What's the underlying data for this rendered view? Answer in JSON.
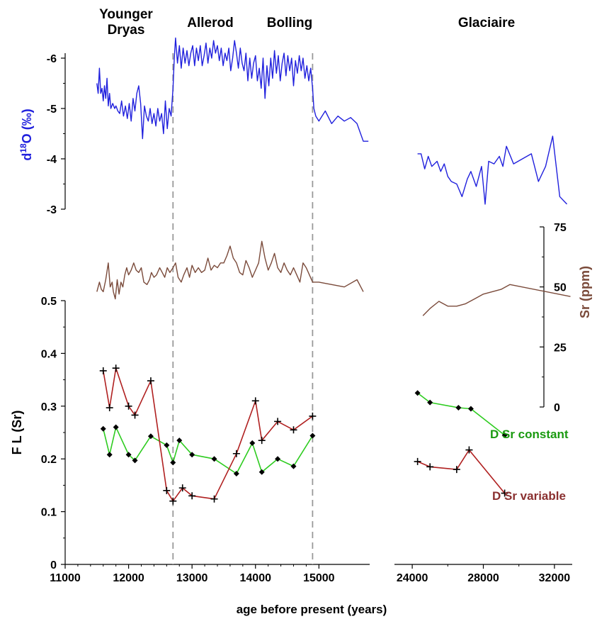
{
  "chart_data": {
    "type": "line",
    "period_labels": [
      "Younger\nDryas",
      "Allerod",
      "Bolling",
      "Glaciaire"
    ],
    "xlabel": "age before present (years)",
    "x_ticks_left": [
      "11000",
      "12000",
      "13000",
      "14000",
      "15000"
    ],
    "x_ticks_right": [
      "24000",
      "28000",
      "32000"
    ],
    "x_range_left": [
      11000,
      15800
    ],
    "x_range_right": [
      23000,
      33000
    ],
    "boundaries": [
      12700,
      14900
    ],
    "d18o": {
      "label_prefix": "d",
      "label_sup": "18",
      "label_suffix": "O (‰)",
      "color": "#2020dd",
      "ticks": [
        "-6",
        "-5",
        "-4",
        "-3"
      ],
      "ylim": [
        -3,
        -6.5
      ],
      "left": [
        [
          11500,
          -5.5
        ],
        [
          11520,
          -5.3
        ],
        [
          11540,
          -5.8
        ],
        [
          11560,
          -5.3
        ],
        [
          11580,
          -5.4
        ],
        [
          11600,
          -5.15
        ],
        [
          11620,
          -5.45
        ],
        [
          11640,
          -5.2
        ],
        [
          11660,
          -5.6
        ],
        [
          11680,
          -5.05
        ],
        [
          11700,
          -5.3
        ],
        [
          11720,
          -5.0
        ],
        [
          11750,
          -5.1
        ],
        [
          11780,
          -5.0
        ],
        [
          11800,
          -5.05
        ],
        [
          11830,
          -4.95
        ],
        [
          11860,
          -4.9
        ],
        [
          11890,
          -5.15
        ],
        [
          11920,
          -4.85
        ],
        [
          11950,
          -5.05
        ],
        [
          11980,
          -4.8
        ],
        [
          12010,
          -5.1
        ],
        [
          12040,
          -4.75
        ],
        [
          12070,
          -5.2
        ],
        [
          12100,
          -4.95
        ],
        [
          12130,
          -5.3
        ],
        [
          12160,
          -5.45
        ],
        [
          12190,
          -5.1
        ],
        [
          12220,
          -4.4
        ],
        [
          12250,
          -5.05
        ],
        [
          12280,
          -4.85
        ],
        [
          12310,
          -4.75
        ],
        [
          12340,
          -5.0
        ],
        [
          12370,
          -4.7
        ],
        [
          12400,
          -4.9
        ],
        [
          12430,
          -4.65
        ],
        [
          12460,
          -5.0
        ],
        [
          12490,
          -4.75
        ],
        [
          12520,
          -4.9
        ],
        [
          12550,
          -4.5
        ],
        [
          12580,
          -5.15
        ],
        [
          12610,
          -4.6
        ],
        [
          12640,
          -5.0
        ],
        [
          12670,
          -4.85
        ],
        [
          12700,
          -5.4
        ],
        [
          12720,
          -6.0
        ],
        [
          12740,
          -6.4
        ],
        [
          12770,
          -5.9
        ],
        [
          12800,
          -6.25
        ],
        [
          12830,
          -5.8
        ],
        [
          12860,
          -6.2
        ],
        [
          12890,
          -5.9
        ],
        [
          12920,
          -6.15
        ],
        [
          12950,
          -5.85
        ],
        [
          12980,
          -6.1
        ],
        [
          13010,
          -6.25
        ],
        [
          13040,
          -5.85
        ],
        [
          13070,
          -6.2
        ],
        [
          13100,
          -5.95
        ],
        [
          13130,
          -6.25
        ],
        [
          13160,
          -5.85
        ],
        [
          13190,
          -6.05
        ],
        [
          13220,
          -6.3
        ],
        [
          13250,
          -5.9
        ],
        [
          13280,
          -6.2
        ],
        [
          13310,
          -6.0
        ],
        [
          13340,
          -6.35
        ],
        [
          13370,
          -6.1
        ],
        [
          13400,
          -6.25
        ],
        [
          13430,
          -5.95
        ],
        [
          13460,
          -6.2
        ],
        [
          13490,
          -5.85
        ],
        [
          13520,
          -6.1
        ],
        [
          13550,
          -5.95
        ],
        [
          13580,
          -6.2
        ],
        [
          13610,
          -5.75
        ],
        [
          13640,
          -6.0
        ],
        [
          13670,
          -6.35
        ],
        [
          13700,
          -6.1
        ],
        [
          13730,
          -5.8
        ],
        [
          13760,
          -6.2
        ],
        [
          13790,
          -5.9
        ],
        [
          13820,
          -5.75
        ],
        [
          13850,
          -6.1
        ],
        [
          13880,
          -5.55
        ],
        [
          13910,
          -6.0
        ],
        [
          13940,
          -5.6
        ],
        [
          13970,
          -5.9
        ],
        [
          14000,
          -6.05
        ],
        [
          14030,
          -5.55
        ],
        [
          14060,
          -5.8
        ],
        [
          14090,
          -5.4
        ],
        [
          14120,
          -6.0
        ],
        [
          14150,
          -5.2
        ],
        [
          14180,
          -5.85
        ],
        [
          14210,
          -5.45
        ],
        [
          14240,
          -6.0
        ],
        [
          14270,
          -5.6
        ],
        [
          14300,
          -6.15
        ],
        [
          14330,
          -5.7
        ],
        [
          14360,
          -6.05
        ],
        [
          14390,
          -5.55
        ],
        [
          14420,
          -5.9
        ],
        [
          14450,
          -6.1
        ],
        [
          14480,
          -5.65
        ],
        [
          14510,
          -6.05
        ],
        [
          14540,
          -5.75
        ],
        [
          14570,
          -6.0
        ],
        [
          14600,
          -5.45
        ],
        [
          14630,
          -5.95
        ],
        [
          14660,
          -5.7
        ],
        [
          14690,
          -6.05
        ],
        [
          14720,
          -5.75
        ],
        [
          14750,
          -6.0
        ],
        [
          14780,
          -5.6
        ],
        [
          14810,
          -5.85
        ],
        [
          14840,
          -5.55
        ],
        [
          14870,
          -5.8
        ],
        [
          14900,
          -5.4
        ],
        [
          14920,
          -5.0
        ],
        [
          14950,
          -4.85
        ],
        [
          15000,
          -4.75
        ],
        [
          15100,
          -4.95
        ],
        [
          15200,
          -4.7
        ],
        [
          15300,
          -4.85
        ],
        [
          15400,
          -4.75
        ],
        [
          15500,
          -4.82
        ],
        [
          15600,
          -4.7
        ],
        [
          15700,
          -4.35
        ],
        [
          15780,
          -4.35
        ]
      ],
      "right": [
        [
          24300,
          -4.1
        ],
        [
          24500,
          -4.1
        ],
        [
          24700,
          -3.8
        ],
        [
          24900,
          -4.05
        ],
        [
          25100,
          -3.85
        ],
        [
          25400,
          -3.95
        ],
        [
          25600,
          -3.75
        ],
        [
          25800,
          -3.9
        ],
        [
          26000,
          -3.65
        ],
        [
          26200,
          -3.55
        ],
        [
          26500,
          -3.5
        ],
        [
          26800,
          -3.25
        ],
        [
          27100,
          -3.6
        ],
        [
          27300,
          -3.75
        ],
        [
          27600,
          -3.45
        ],
        [
          27900,
          -3.85
        ],
        [
          28100,
          -3.1
        ],
        [
          28300,
          -3.95
        ],
        [
          28600,
          -3.9
        ],
        [
          28900,
          -4.05
        ],
        [
          29100,
          -3.85
        ],
        [
          29300,
          -4.25
        ],
        [
          29700,
          -3.9
        ],
        [
          30200,
          -4.0
        ],
        [
          30700,
          -4.1
        ],
        [
          31100,
          -3.55
        ],
        [
          31500,
          -3.85
        ],
        [
          31900,
          -4.45
        ],
        [
          32300,
          -3.25
        ],
        [
          32700,
          -3.1
        ]
      ]
    },
    "sr": {
      "label": "Sr (ppm)",
      "color": "#7a4a3a",
      "ticks": [
        "0",
        "25",
        "50",
        "75"
      ],
      "ylim": [
        0,
        75
      ],
      "left": [
        [
          11500,
          48
        ],
        [
          11540,
          52
        ],
        [
          11570,
          49
        ],
        [
          11600,
          48
        ],
        [
          11640,
          53
        ],
        [
          11680,
          60
        ],
        [
          11710,
          50
        ],
        [
          11740,
          52
        ],
        [
          11760,
          48
        ],
        [
          11790,
          45
        ],
        [
          11820,
          53
        ],
        [
          11850,
          47
        ],
        [
          11880,
          52
        ],
        [
          11910,
          50
        ],
        [
          11940,
          55
        ],
        [
          11970,
          58
        ],
        [
          12000,
          55
        ],
        [
          12040,
          57
        ],
        [
          12080,
          60
        ],
        [
          12120,
          57
        ],
        [
          12160,
          56
        ],
        [
          12200,
          58
        ],
        [
          12240,
          52
        ],
        [
          12290,
          51
        ],
        [
          12330,
          53
        ],
        [
          12360,
          56
        ],
        [
          12400,
          54
        ],
        [
          12440,
          55
        ],
        [
          12490,
          58
        ],
        [
          12530,
          56
        ],
        [
          12570,
          54
        ],
        [
          12610,
          58
        ],
        [
          12650,
          56
        ],
        [
          12700,
          58
        ],
        [
          12740,
          60
        ],
        [
          12780,
          54
        ],
        [
          12830,
          52
        ],
        [
          12870,
          55
        ],
        [
          12920,
          58
        ],
        [
          12960,
          54
        ],
        [
          13000,
          59
        ],
        [
          13050,
          56
        ],
        [
          13100,
          58
        ],
        [
          13150,
          56
        ],
        [
          13200,
          57
        ],
        [
          13250,
          62
        ],
        [
          13300,
          57
        ],
        [
          13350,
          59
        ],
        [
          13400,
          58
        ],
        [
          13450,
          60
        ],
        [
          13500,
          60
        ],
        [
          13550,
          63
        ],
        [
          13600,
          67
        ],
        [
          13650,
          62
        ],
        [
          13700,
          60
        ],
        [
          13750,
          56
        ],
        [
          13800,
          55
        ],
        [
          13850,
          61
        ],
        [
          13900,
          58
        ],
        [
          13950,
          54
        ],
        [
          14000,
          57
        ],
        [
          14050,
          60
        ],
        [
          14100,
          69
        ],
        [
          14150,
          62
        ],
        [
          14200,
          57
        ],
        [
          14250,
          60
        ],
        [
          14300,
          64
        ],
        [
          14350,
          58
        ],
        [
          14400,
          56
        ],
        [
          14450,
          60
        ],
        [
          14500,
          57
        ],
        [
          14550,
          55
        ],
        [
          14600,
          58
        ],
        [
          14650,
          55
        ],
        [
          14700,
          52
        ],
        [
          14750,
          60
        ],
        [
          14800,
          58
        ],
        [
          14850,
          55
        ],
        [
          14900,
          52
        ],
        [
          15000,
          52
        ],
        [
          15200,
          51
        ],
        [
          15400,
          50
        ],
        [
          15600,
          53
        ],
        [
          15700,
          48
        ]
      ],
      "right": [
        [
          24600,
          38
        ],
        [
          25000,
          41
        ],
        [
          25500,
          44
        ],
        [
          26000,
          42
        ],
        [
          26500,
          42
        ],
        [
          27000,
          43
        ],
        [
          27500,
          45
        ],
        [
          28000,
          47
        ],
        [
          29000,
          49
        ],
        [
          29500,
          51
        ],
        [
          32900,
          46
        ]
      ]
    },
    "fl": {
      "label": "F L (Sr)",
      "ticks": [
        "0",
        "0.1",
        "0.2",
        "0.3",
        "0.4",
        "0.5"
      ],
      "ylim": [
        0,
        0.5
      ],
      "series": [
        {
          "name": "D Sr constant",
          "color": "#2ecc20",
          "marker": "diamond",
          "left": [
            [
              11600,
              0.257
            ],
            [
              11700,
              0.208
            ],
            [
              11800,
              0.26
            ],
            [
              12000,
              0.208
            ],
            [
              12100,
              0.197
            ],
            [
              12350,
              0.243
            ],
            [
              12600,
              0.226
            ],
            [
              12700,
              0.193
            ],
            [
              12800,
              0.235
            ],
            [
              13000,
              0.208
            ],
            [
              13350,
              0.2
            ],
            [
              13700,
              0.172
            ],
            [
              13950,
              0.23
            ],
            [
              14100,
              0.175
            ],
            [
              14350,
              0.2
            ],
            [
              14600,
              0.186
            ],
            [
              14900,
              0.244
            ]
          ],
          "right": [
            [
              24300,
              0.325
            ],
            [
              25000,
              0.307
            ],
            [
              26600,
              0.297
            ],
            [
              27300,
              0.295
            ],
            [
              29200,
              0.245
            ]
          ]
        },
        {
          "name": "D Sr variable",
          "color": "#b02020",
          "marker": "plus",
          "left": [
            [
              11600,
              0.367
            ],
            [
              11700,
              0.297
            ],
            [
              11800,
              0.372
            ],
            [
              12000,
              0.3
            ],
            [
              12100,
              0.283
            ],
            [
              12350,
              0.348
            ],
            [
              12600,
              0.14
            ],
            [
              12700,
              0.12
            ],
            [
              12850,
              0.145
            ],
            [
              13000,
              0.13
            ],
            [
              13350,
              0.124
            ],
            [
              13700,
              0.21
            ],
            [
              14000,
              0.31
            ],
            [
              14100,
              0.235
            ],
            [
              14350,
              0.271
            ],
            [
              14600,
              0.255
            ],
            [
              14900,
              0.281
            ]
          ],
          "right": [
            [
              24300,
              0.195
            ],
            [
              25000,
              0.185
            ],
            [
              26500,
              0.18
            ],
            [
              27200,
              0.217
            ],
            [
              29200,
              0.135
            ]
          ]
        }
      ]
    }
  }
}
